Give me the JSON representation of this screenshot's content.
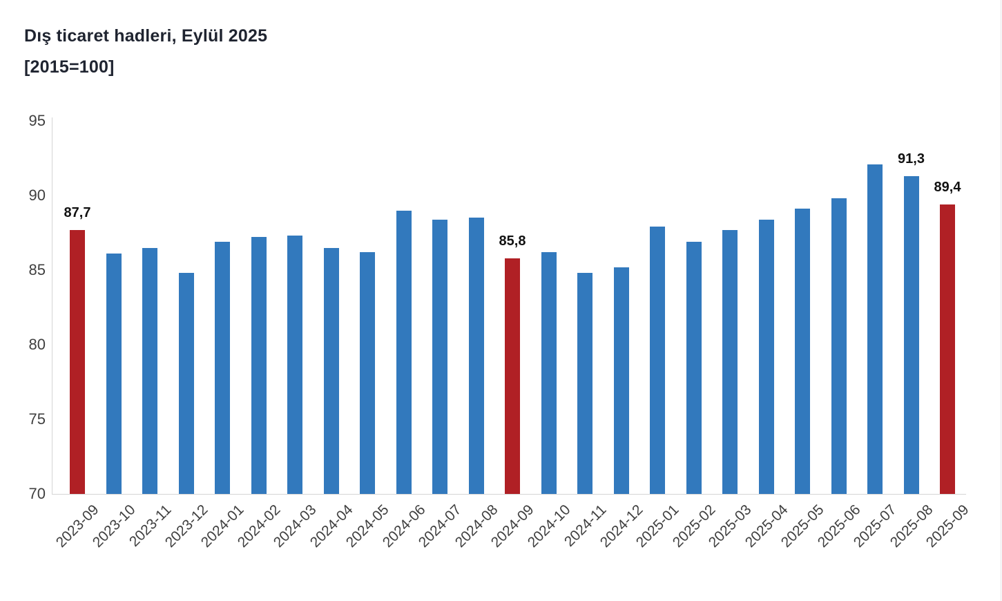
{
  "chart_data": {
    "type": "bar",
    "title": "Dış ticaret hadleri, Eylül 2025",
    "subtitle": "[2015=100]",
    "categories": [
      "2023-09",
      "2023-10",
      "2023-11",
      "2023-12",
      "2024-01",
      "2024-02",
      "2024-03",
      "2024-04",
      "2024-05",
      "2024-06",
      "2024-07",
      "2024-08",
      "2024-09",
      "2024-10",
      "2024-11",
      "2024-12",
      "2025-01",
      "2025-02",
      "2025-03",
      "2025-04",
      "2025-05",
      "2025-06",
      "2025-07",
      "2025-08",
      "2025-09"
    ],
    "values": [
      87.7,
      86.1,
      86.5,
      84.8,
      86.9,
      87.2,
      87.3,
      86.5,
      86.2,
      89.0,
      88.4,
      88.5,
      85.8,
      86.2,
      84.8,
      85.2,
      87.9,
      86.9,
      87.7,
      88.4,
      89.1,
      89.8,
      92.1,
      91.3,
      89.4
    ],
    "highlight_indices": [
      0,
      12,
      24
    ],
    "data_labels": [
      {
        "index": 0,
        "label": "87,7"
      },
      {
        "index": 12,
        "label": "85,8"
      },
      {
        "index": 23,
        "label": "91,3"
      },
      {
        "index": 24,
        "label": "89,4"
      }
    ],
    "yticks": [
      70,
      75,
      80,
      85,
      90,
      95
    ],
    "ylim": [
      70,
      95
    ],
    "grid": false,
    "legend": false,
    "xlabel": "",
    "ylabel": "",
    "colors": {
      "bar": "#3279BD",
      "highlight": "#B02025",
      "axis_line": "#d4d4d4",
      "tick_text": "#3f3f3f",
      "data_label_text": "#111111",
      "title_text": "#1f2430",
      "background": "#ffffff"
    }
  }
}
